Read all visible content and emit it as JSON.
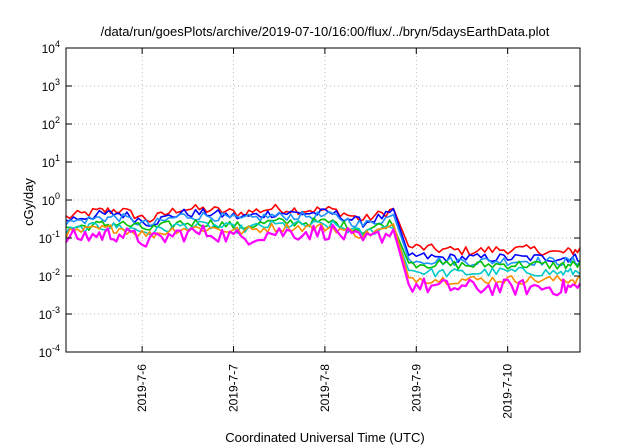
{
  "chart_data": {
    "type": "line",
    "title": "/data/run/goesPlots/archive/2019-07-10/16:00/flux/../bryn/5daysEarthData.plot",
    "xlabel": "Coordinated Universal Time (UTC)",
    "ylabel": "cGy/day",
    "yscale": "log",
    "ylim": [
      0.0001,
      10000
    ],
    "xlim": [
      "2019-07-05 04:00",
      "2019-07-10 19:00"
    ],
    "yticks": [
      {
        "value": 0.0001,
        "mantissa": "10",
        "exp": "-4"
      },
      {
        "value": 0.001,
        "mantissa": "10",
        "exp": "-3"
      },
      {
        "value": 0.01,
        "mantissa": "10",
        "exp": "-2"
      },
      {
        "value": 0.1,
        "mantissa": "10",
        "exp": "-1"
      },
      {
        "value": 1,
        "mantissa": "10",
        "exp": "0"
      },
      {
        "value": 10,
        "mantissa": "10",
        "exp": "1"
      },
      {
        "value": 100,
        "mantissa": "10",
        "exp": "2"
      },
      {
        "value": 1000,
        "mantissa": "10",
        "exp": "3"
      },
      {
        "value": 10000,
        "mantissa": "10",
        "exp": "4"
      }
    ],
    "xticks": [
      "2019-7-6",
      "2019-7-7",
      "2019-7-8",
      "2019-7-9",
      "2019-7-10"
    ],
    "grid": true,
    "legend": "none",
    "x": [
      "2019-07-05 04:00",
      "2019-07-05 12:00",
      "2019-07-05 18:00",
      "2019-07-06 02:00",
      "2019-07-06 10:00",
      "2019-07-06 18:00",
      "2019-07-07 02:00",
      "2019-07-07 10:00",
      "2019-07-07 18:00",
      "2019-07-08 02:00",
      "2019-07-08 10:00",
      "2019-07-08 18:00",
      "2019-07-08 22:00",
      "2019-07-09 06:00",
      "2019-07-09 14:00",
      "2019-07-09 22:00",
      "2019-07-10 06:00",
      "2019-07-10 14:00",
      "2019-07-10 19:00"
    ],
    "series": [
      {
        "color": "#ff0000",
        "values": [
          0.35,
          0.5,
          0.55,
          0.3,
          0.6,
          0.55,
          0.45,
          0.6,
          0.55,
          0.55,
          0.3,
          0.55,
          0.06,
          0.05,
          0.045,
          0.05,
          0.05,
          0.04,
          0.05
        ]
      },
      {
        "color": "#0000ff",
        "values": [
          0.3,
          0.4,
          0.45,
          0.25,
          0.45,
          0.45,
          0.35,
          0.45,
          0.45,
          0.45,
          0.25,
          0.45,
          0.035,
          0.03,
          0.03,
          0.03,
          0.03,
          0.03,
          0.03
        ]
      },
      {
        "color": "#1e90ff",
        "values": [
          0.25,
          0.33,
          0.35,
          0.22,
          0.38,
          0.38,
          0.3,
          0.38,
          0.38,
          0.38,
          0.22,
          0.38,
          0.028,
          0.025,
          0.024,
          0.025,
          0.025,
          0.024,
          0.025
        ]
      },
      {
        "color": "#00c000",
        "values": [
          0.18,
          0.22,
          0.24,
          0.17,
          0.25,
          0.25,
          0.2,
          0.26,
          0.26,
          0.26,
          0.16,
          0.26,
          0.022,
          0.02,
          0.019,
          0.02,
          0.02,
          0.019,
          0.02
        ]
      },
      {
        "color": "#00c8c8",
        "values": [
          0.15,
          0.2,
          0.2,
          0.14,
          0.21,
          0.21,
          0.17,
          0.22,
          0.22,
          0.22,
          0.13,
          0.22,
          0.014,
          0.012,
          0.012,
          0.013,
          0.013,
          0.012,
          0.013
        ]
      },
      {
        "color": "#ff8c00",
        "values": [
          0.13,
          0.17,
          0.18,
          0.12,
          0.18,
          0.18,
          0.15,
          0.19,
          0.19,
          0.19,
          0.12,
          0.19,
          0.009,
          0.008,
          0.008,
          0.008,
          0.008,
          0.008,
          0.008
        ]
      },
      {
        "color": "#ff00ff",
        "values": [
          0.1,
          0.12,
          0.13,
          0.08,
          0.13,
          0.14,
          0.1,
          0.14,
          0.14,
          0.15,
          0.08,
          0.15,
          0.006,
          0.005,
          0.005,
          0.005,
          0.005,
          0.005,
          0.005
        ]
      }
    ]
  }
}
